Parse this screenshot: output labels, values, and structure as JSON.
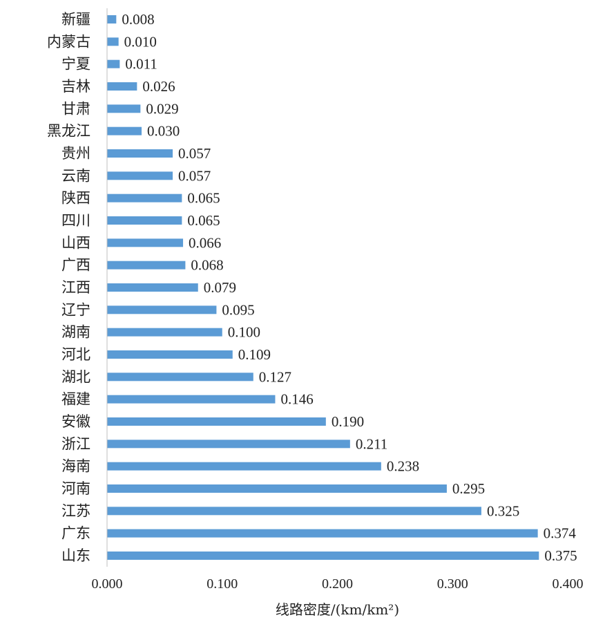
{
  "chart_data": {
    "type": "bar",
    "orientation": "horizontal",
    "categories": [
      "新疆",
      "内蒙古",
      "宁夏",
      "吉林",
      "甘肃",
      "黑龙江",
      "贵州",
      "云南",
      "陕西",
      "四川",
      "山西",
      "广西",
      "江西",
      "辽宁",
      "湖南",
      "河北",
      "湖北",
      "福建",
      "安徽",
      "浙江",
      "海南",
      "河南",
      "江苏",
      "广东",
      "山东"
    ],
    "values": [
      0.008,
      0.01,
      0.011,
      0.026,
      0.029,
      0.03,
      0.057,
      0.057,
      0.065,
      0.065,
      0.066,
      0.068,
      0.079,
      0.095,
      0.1,
      0.109,
      0.127,
      0.146,
      0.19,
      0.211,
      0.238,
      0.295,
      0.325,
      0.374,
      0.375
    ],
    "value_labels": [
      "0.008",
      "0.010",
      "0.011",
      "0.026",
      "0.029",
      "0.030",
      "0.057",
      "0.057",
      "0.065",
      "0.065",
      "0.066",
      "0.068",
      "0.079",
      "0.095",
      "0.100",
      "0.109",
      "0.127",
      "0.146",
      "0.190",
      "0.211",
      "0.238",
      "0.295",
      "0.325",
      "0.374",
      "0.375"
    ],
    "title": "",
    "xlabel": "线路密度/(km/km²)",
    "ylabel": "",
    "xlim": [
      0,
      0.4
    ],
    "x_ticks": [
      "0.000",
      "0.100",
      "0.200",
      "0.300",
      "0.400"
    ],
    "grid": false,
    "legend": "none",
    "bar_color": "#5B9BD5"
  }
}
